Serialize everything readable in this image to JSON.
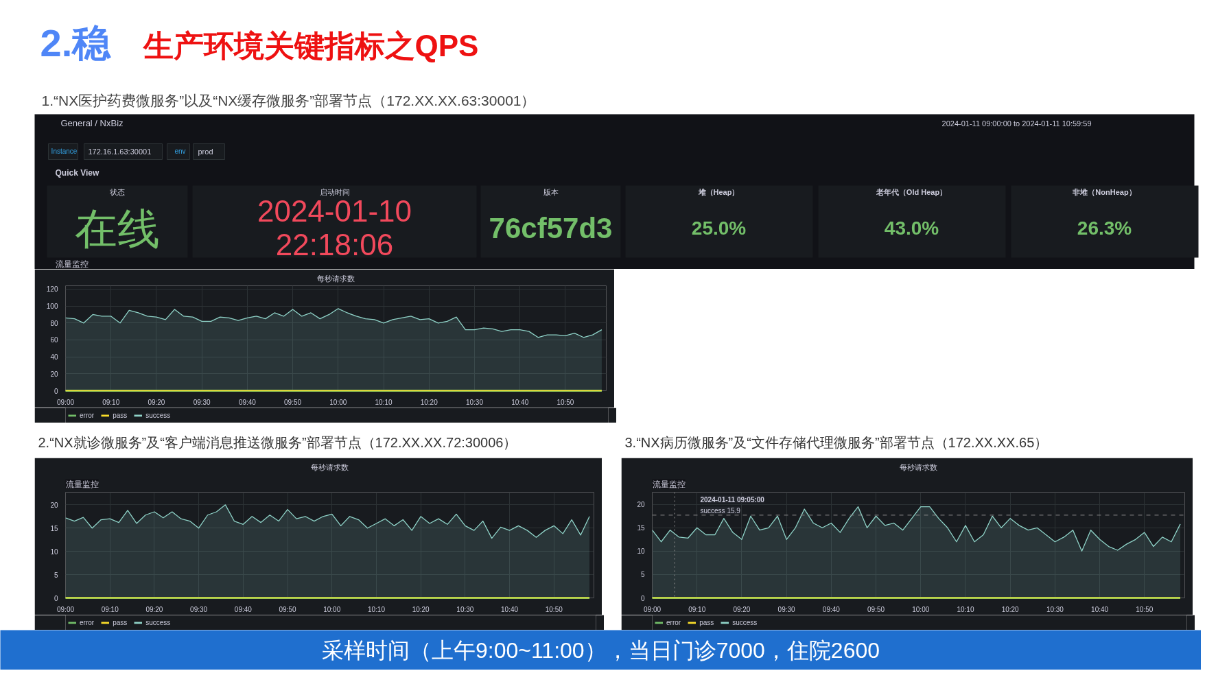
{
  "chart_data": [
    {
      "type": "other",
      "title": "2.稳 生产环境关键指标之QPS",
      "subtitle": "1.“NX医护药费微服务”以及“NX缓存微服务”部署节点（172.XX.XX.63:30001）",
      "annotations": [
        "General / NxBiz",
        "2024-01-11 09:00:00 to 2024-01-11 10:59:59",
        "Instance",
        "172.16.1.63:30001",
        "env",
        "prod",
        "Quick View",
        "状态",
        "在线",
        "启动时间",
        "2024-01-10",
        "22:18:06",
        "版本",
        "76cf57d3",
        "堆（Heap）",
        "25.0%",
        "老年代（Old Heap）",
        "43.0%",
        "非堆（NonHeap）",
        "26.3%",
        "流量监控"
      ]
    },
    {
      "type": "line",
      "title": "每秒请求数",
      "xlim": [
        9,
        10.9833
      ],
      "ylim": [
        0,
        124
      ],
      "yticks": [
        0,
        20,
        40,
        60,
        80,
        100,
        120
      ],
      "xticks": [
        {
          "value": 9,
          "label": "09:00"
        },
        {
          "value": 9.1667,
          "label": "09:10"
        },
        {
          "value": 9.3333,
          "label": "09:20"
        },
        {
          "value": 9.5,
          "label": "09:30"
        },
        {
          "value": 9.6667,
          "label": "09:40"
        },
        {
          "value": 9.8333,
          "label": "09:50"
        },
        {
          "value": 10,
          "label": "10:00"
        },
        {
          "value": 10.1667,
          "label": "10:10"
        },
        {
          "value": 10.3333,
          "label": "10:20"
        },
        {
          "value": 10.5,
          "label": "10:30"
        },
        {
          "value": 10.6667,
          "label": "10:40"
        },
        {
          "value": 10.8333,
          "label": "10:50"
        }
      ],
      "grid": true,
      "legend": "bottom left",
      "x": [
        9,
        9.0333,
        9.0667,
        9.1,
        9.1333,
        9.1667,
        9.2,
        9.2333,
        9.2667,
        9.3,
        9.3333,
        9.3667,
        9.4,
        9.4333,
        9.4667,
        9.5,
        9.5333,
        9.5667,
        9.6,
        9.6333,
        9.6667,
        9.7,
        9.7333,
        9.7667,
        9.8,
        9.8333,
        9.8667,
        9.9,
        9.9333,
        9.9667,
        10,
        10.0333,
        10.0667,
        10.1,
        10.1333,
        10.1667,
        10.2,
        10.2333,
        10.2667,
        10.3,
        10.3333,
        10.3667,
        10.4,
        10.4333,
        10.4667,
        10.5,
        10.5333,
        10.5667,
        10.6,
        10.6333,
        10.6667,
        10.7,
        10.7333,
        10.7667,
        10.8,
        10.8333,
        10.8667,
        10.9,
        10.9333,
        10.9667
      ],
      "series": [
        {
          "name": "error",
          "type": "line",
          "color": "#73bf69",
          "values": [
            0,
            0,
            0,
            0,
            0,
            0,
            0,
            0,
            0,
            0,
            0,
            0,
            0,
            0,
            0,
            0,
            0,
            0,
            0,
            0,
            0,
            0,
            0,
            0,
            0,
            0,
            0,
            0,
            0,
            0,
            0,
            0,
            0,
            0,
            0,
            0,
            0,
            0,
            0,
            0,
            0,
            0,
            0,
            0,
            0,
            0,
            0,
            0,
            0,
            0,
            0,
            0,
            0,
            0,
            0,
            0,
            0,
            0,
            0,
            0
          ]
        },
        {
          "name": "pass",
          "type": "line",
          "color": "#fade2a",
          "values": [
            0,
            0,
            0,
            0,
            0,
            0,
            0,
            0,
            0,
            0,
            0,
            0,
            0,
            0,
            0,
            0,
            0,
            0,
            0,
            0,
            0,
            0,
            0,
            0,
            0,
            0,
            0,
            0,
            0,
            0,
            0,
            0,
            0,
            0,
            0,
            0,
            0,
            0,
            0,
            0,
            0,
            0,
            0,
            0,
            0,
            0,
            0,
            0,
            0,
            0,
            0,
            0,
            0,
            0,
            0,
            0,
            0,
            0,
            0,
            0
          ]
        },
        {
          "name": "success",
          "type": "area",
          "color": "#8fd3c8",
          "values": [
            86,
            85,
            80,
            90,
            88,
            88,
            80,
            95,
            92,
            88,
            87,
            84,
            96,
            88,
            87,
            82,
            82,
            87,
            86,
            83,
            86,
            88,
            85,
            92,
            88,
            96,
            88,
            92,
            85,
            90,
            97,
            92,
            88,
            85,
            84,
            80,
            84,
            86,
            88,
            84,
            85,
            80,
            82,
            87,
            72,
            72,
            74,
            73,
            70,
            72,
            72,
            70,
            63,
            66,
            66,
            65,
            68,
            63,
            66,
            72
          ]
        }
      ]
    },
    {
      "type": "line",
      "title": "每秒请求数",
      "subtitle": "2.“NX就诊微服务”及“客户端消息推送微服务”部署节点（172.XX.XX.72:30006）",
      "annotations": [
        "流量监控"
      ],
      "xlim": [
        9,
        10.9833
      ],
      "ylim": [
        0,
        22.7
      ],
      "yticks": [
        0,
        5,
        10,
        15,
        20
      ],
      "xticks": [
        {
          "value": 9,
          "label": "09:00"
        },
        {
          "value": 9.1667,
          "label": "09:10"
        },
        {
          "value": 9.3333,
          "label": "09:20"
        },
        {
          "value": 9.5,
          "label": "09:30"
        },
        {
          "value": 9.6667,
          "label": "09:40"
        },
        {
          "value": 9.8333,
          "label": "09:50"
        },
        {
          "value": 10,
          "label": "10:00"
        },
        {
          "value": 10.1667,
          "label": "10:10"
        },
        {
          "value": 10.3333,
          "label": "10:20"
        },
        {
          "value": 10.5,
          "label": "10:30"
        },
        {
          "value": 10.6667,
          "label": "10:40"
        },
        {
          "value": 10.8333,
          "label": "10:50"
        }
      ],
      "grid": true,
      "legend": "bottom left",
      "x": [
        9,
        9.0333,
        9.0667,
        9.1,
        9.1333,
        9.1667,
        9.2,
        9.2333,
        9.2667,
        9.3,
        9.3333,
        9.3667,
        9.4,
        9.4333,
        9.4667,
        9.5,
        9.5333,
        9.5667,
        9.6,
        9.6333,
        9.6667,
        9.7,
        9.7333,
        9.7667,
        9.8,
        9.8333,
        9.8667,
        9.9,
        9.9333,
        9.9667,
        10,
        10.0333,
        10.0667,
        10.1,
        10.1333,
        10.1667,
        10.2,
        10.2333,
        10.2667,
        10.3,
        10.3333,
        10.3667,
        10.4,
        10.4333,
        10.4667,
        10.5,
        10.5333,
        10.5667,
        10.6,
        10.6333,
        10.6667,
        10.7,
        10.7333,
        10.7667,
        10.8,
        10.8333,
        10.8667,
        10.9,
        10.9333,
        10.9667
      ],
      "series": [
        {
          "name": "error",
          "type": "line",
          "color": "#73bf69",
          "values": [
            0,
            0,
            0,
            0,
            0,
            0,
            0,
            0,
            0,
            0,
            0,
            0,
            0,
            0,
            0,
            0,
            0,
            0,
            0,
            0,
            0,
            0,
            0,
            0,
            0,
            0,
            0,
            0,
            0,
            0,
            0,
            0,
            0,
            0,
            0,
            0,
            0,
            0,
            0,
            0,
            0,
            0,
            0,
            0,
            0,
            0,
            0,
            0,
            0,
            0,
            0,
            0,
            0,
            0,
            0,
            0,
            0,
            0,
            0,
            0
          ]
        },
        {
          "name": "pass",
          "type": "line",
          "color": "#fade2a",
          "values": [
            0,
            0,
            0,
            0,
            0,
            0,
            0,
            0,
            0,
            0,
            0,
            0,
            0,
            0,
            0,
            0,
            0,
            0,
            0,
            0,
            0,
            0,
            0,
            0,
            0,
            0,
            0,
            0,
            0,
            0,
            0,
            0,
            0,
            0,
            0,
            0,
            0,
            0,
            0,
            0,
            0,
            0,
            0,
            0,
            0,
            0,
            0,
            0,
            0,
            0,
            0,
            0,
            0,
            0,
            0,
            0,
            0,
            0,
            0,
            0
          ]
        },
        {
          "name": "success",
          "type": "area",
          "color": "#8fd3c8",
          "values": [
            17.2,
            16.5,
            17.3,
            15,
            16.8,
            17,
            16.2,
            18.8,
            16,
            17.8,
            18.5,
            17.2,
            18.5,
            17,
            16.5,
            15,
            17.8,
            18.5,
            20,
            16.5,
            15.8,
            17.5,
            16.2,
            17.8,
            16.5,
            19,
            17,
            17.5,
            16.5,
            17.5,
            18,
            15.5,
            17.5,
            16.8,
            15,
            16,
            17,
            15.5,
            16.8,
            14.5,
            17.5,
            16,
            17,
            15.8,
            18,
            15.5,
            14.5,
            16.5,
            12.8,
            15.2,
            14.5,
            15.5,
            14.5,
            13,
            14.5,
            15.5,
            13.8,
            16.8,
            13.5,
            17.5
          ]
        }
      ]
    },
    {
      "type": "line",
      "title": "每秒请求数",
      "subtitle": "3.“NX病历微服务”及“文件存储代理微服务”部署节点（172.XX.XX.65）",
      "annotations": [
        "流量监控",
        "2024-01-11 09:05:00",
        "success 15.9"
      ],
      "xlim": [
        9,
        10.9833
      ],
      "ylim": [
        0,
        22.6
      ],
      "yticks": [
        0,
        5,
        10,
        15,
        20
      ],
      "xticks": [
        {
          "value": 9,
          "label": "09:00"
        },
        {
          "value": 9.1667,
          "label": "09:10"
        },
        {
          "value": 9.3333,
          "label": "09:20"
        },
        {
          "value": 9.5,
          "label": "09:30"
        },
        {
          "value": 9.6667,
          "label": "09:40"
        },
        {
          "value": 9.8333,
          "label": "09:50"
        },
        {
          "value": 10,
          "label": "10:00"
        },
        {
          "value": 10.1667,
          "label": "10:10"
        },
        {
          "value": 10.3333,
          "label": "10:20"
        },
        {
          "value": 10.5,
          "label": "10:30"
        },
        {
          "value": 10.6667,
          "label": "10:40"
        },
        {
          "value": 10.8333,
          "label": "10:50"
        }
      ],
      "grid": true,
      "legend": "bottom left",
      "ref_lines": [
        {
          "axis": "y",
          "value": 17.7,
          "line_style": "dashed",
          "color": "#8e8e8e"
        },
        {
          "axis": "x",
          "value": 9.0833,
          "line_style": "dotted",
          "color": "#8e8e8e"
        }
      ],
      "x": [
        9,
        9.0333,
        9.0667,
        9.1,
        9.1333,
        9.1667,
        9.2,
        9.2333,
        9.2667,
        9.3,
        9.3333,
        9.3667,
        9.4,
        9.4333,
        9.4667,
        9.5,
        9.5333,
        9.5667,
        9.6,
        9.6333,
        9.6667,
        9.7,
        9.7333,
        9.7667,
        9.8,
        9.8333,
        9.8667,
        9.9,
        9.9333,
        9.9667,
        10,
        10.0333,
        10.0667,
        10.1,
        10.1333,
        10.1667,
        10.2,
        10.2333,
        10.2667,
        10.3,
        10.3333,
        10.3667,
        10.4,
        10.4333,
        10.4667,
        10.5,
        10.5333,
        10.5667,
        10.6,
        10.6333,
        10.6667,
        10.7,
        10.7333,
        10.7667,
        10.8,
        10.8333,
        10.8667,
        10.9,
        10.9333,
        10.9667
      ],
      "series": [
        {
          "name": "error",
          "type": "line",
          "color": "#73bf69",
          "values": [
            0,
            0,
            0,
            0,
            0,
            0,
            0,
            0,
            0,
            0,
            0,
            0,
            0,
            0,
            0,
            0,
            0,
            0,
            0,
            0,
            0,
            0,
            0,
            0,
            0,
            0,
            0,
            0,
            0,
            0,
            0,
            0,
            0,
            0,
            0,
            0,
            0,
            0,
            0,
            0,
            0,
            0,
            0,
            0,
            0,
            0,
            0,
            0,
            0,
            0,
            0,
            0,
            0,
            0,
            0,
            0,
            0,
            0,
            0,
            0
          ]
        },
        {
          "name": "pass",
          "type": "line",
          "color": "#fade2a",
          "values": [
            0,
            0,
            0,
            0,
            0,
            0,
            0,
            0,
            0,
            0,
            0,
            0,
            0,
            0,
            0,
            0,
            0,
            0,
            0,
            0,
            0,
            0,
            0,
            0,
            0,
            0,
            0,
            0,
            0,
            0,
            0,
            0,
            0,
            0,
            0,
            0,
            0,
            0,
            0,
            0,
            0,
            0,
            0,
            0,
            0,
            0,
            0,
            0,
            0,
            0,
            0,
            0,
            0,
            0,
            0,
            0,
            0,
            0,
            0,
            0
          ]
        },
        {
          "name": "success",
          "type": "area",
          "color": "#8fd3c8",
          "values": [
            14.5,
            12,
            14.5,
            13,
            12.8,
            15,
            13.5,
            13.5,
            17,
            14,
            12.5,
            17.5,
            14.5,
            15,
            17.5,
            12.5,
            15,
            19,
            16,
            15,
            16,
            14,
            17,
            19.5,
            15,
            17.5,
            15.5,
            16,
            14.5,
            17,
            19.5,
            19.5,
            17,
            15,
            12,
            15.5,
            12,
            13.5,
            17.5,
            15,
            17,
            15.5,
            14.5,
            15,
            13.5,
            12,
            13,
            14.5,
            10,
            14.5,
            12.5,
            11,
            10.2,
            11.5,
            12.5,
            14,
            11,
            13,
            12,
            15.8
          ]
        }
      ]
    },
    {
      "type": "other",
      "title": "采样时间（上午9:00~11:00），当日门诊7000，住院2600"
    }
  ]
}
